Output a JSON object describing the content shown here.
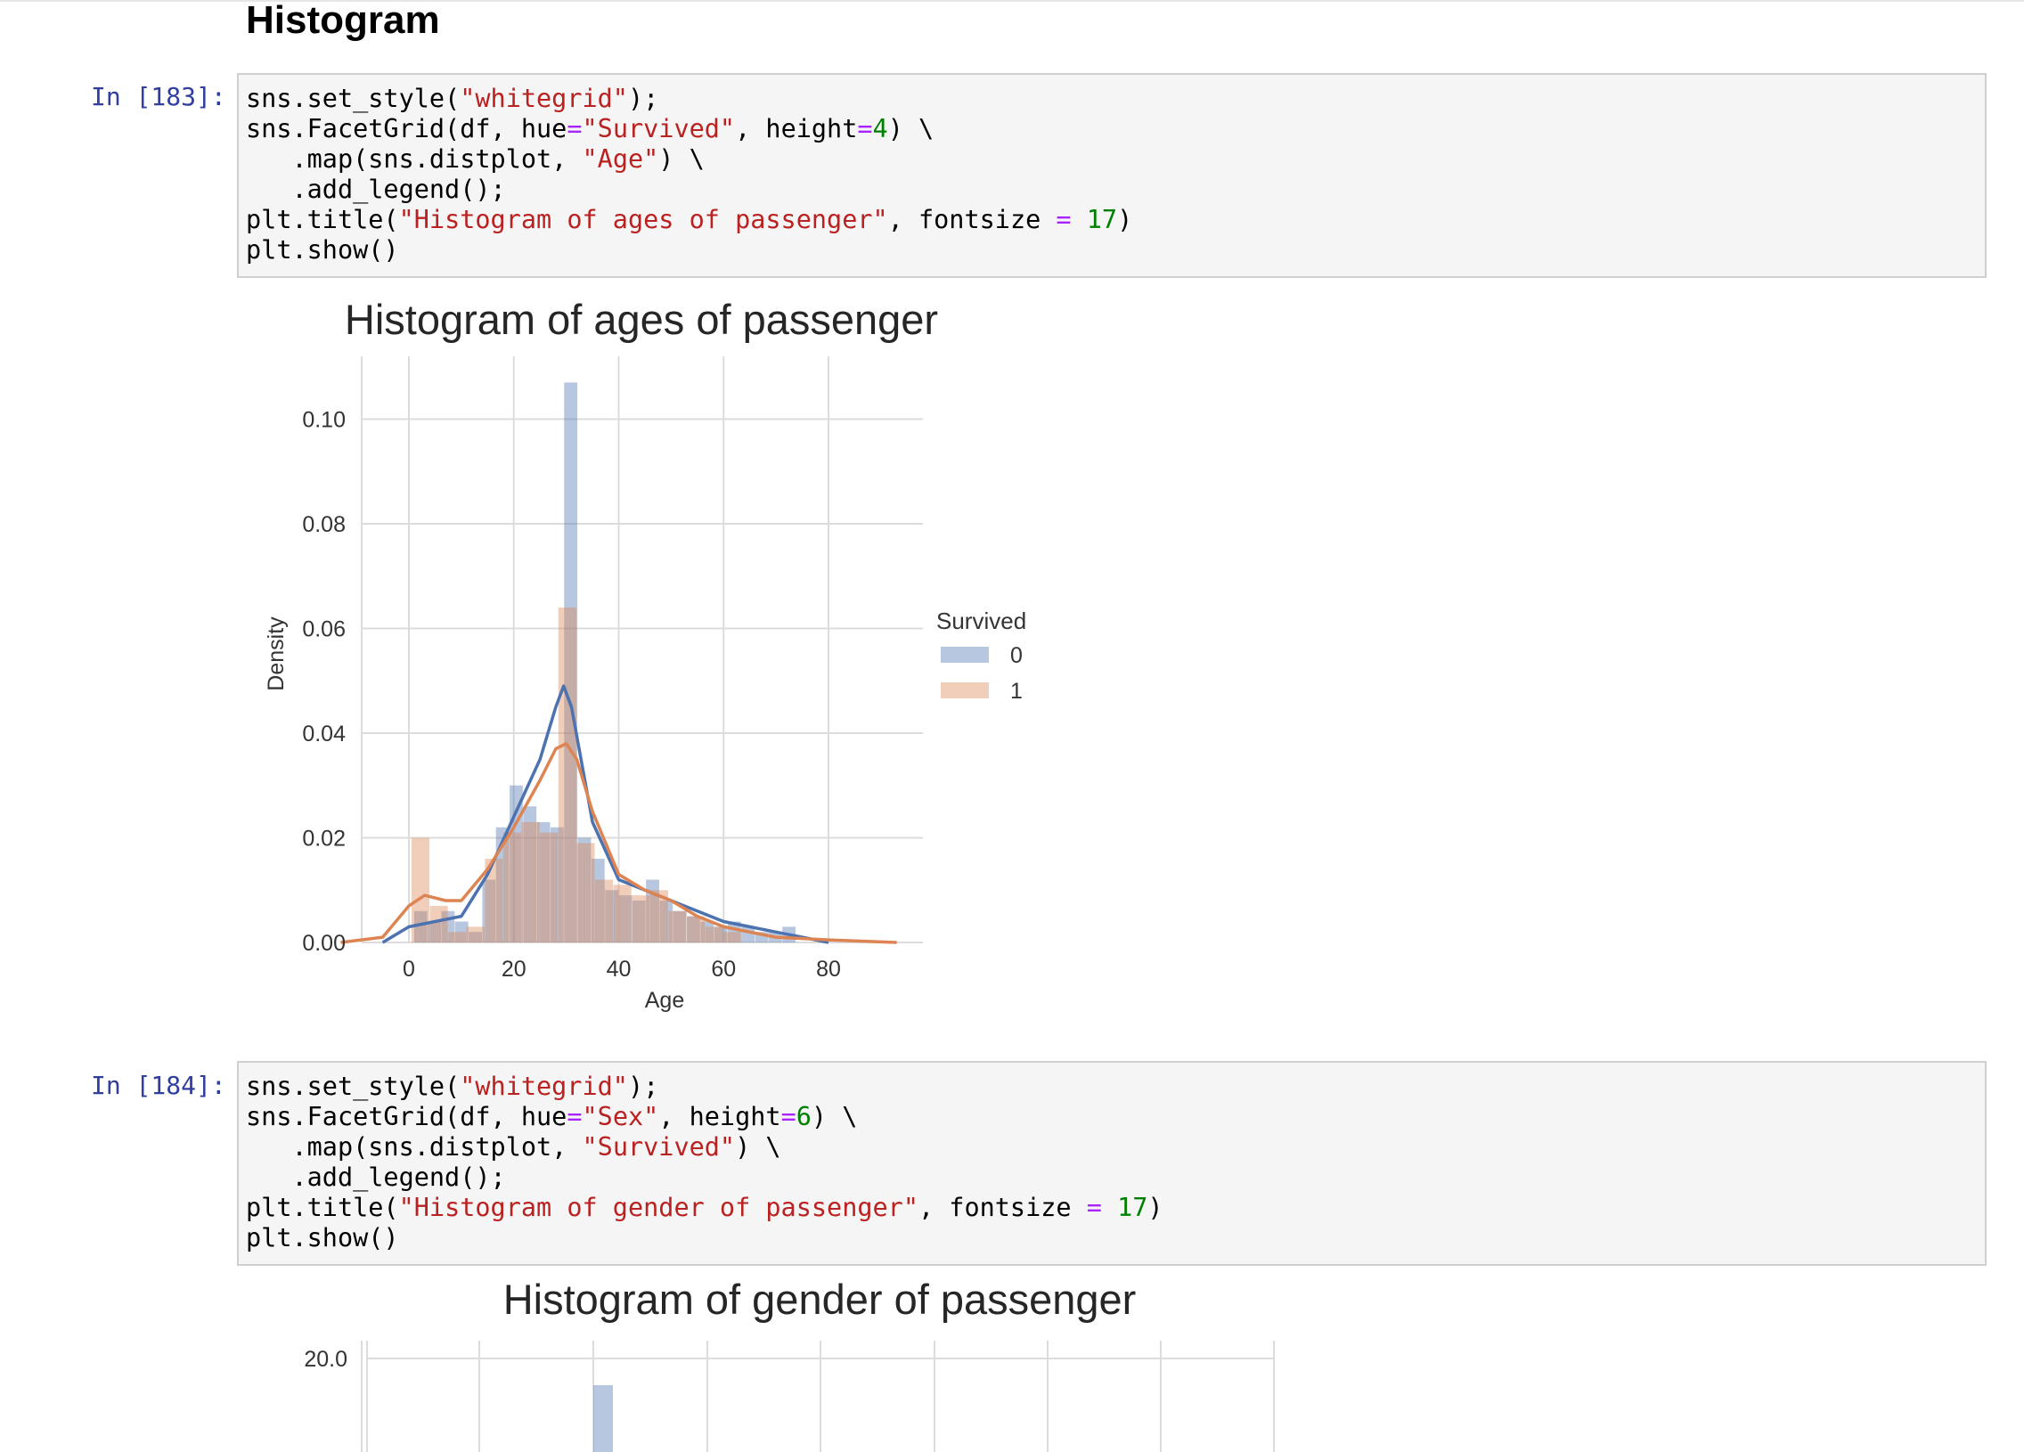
{
  "notebook": {
    "heading": "Histogram",
    "cells": [
      {
        "prompt": "In [183]:",
        "lines": [
          [
            {
              "t": "sns.set_style("
            },
            {
              "t": "\"whitegrid\"",
              "c": "s"
            },
            {
              "t": ");"
            }
          ],
          [
            {
              "t": "sns.FacetGrid(df, hue"
            },
            {
              "t": "=",
              "c": "o"
            },
            {
              "t": "\"Survived\"",
              "c": "s"
            },
            {
              "t": ", height"
            },
            {
              "t": "=",
              "c": "o"
            },
            {
              "t": "4",
              "c": "n"
            },
            {
              "t": ") \\"
            }
          ],
          [
            {
              "t": "   .map(sns.distplot, "
            },
            {
              "t": "\"Age\"",
              "c": "s"
            },
            {
              "t": ") \\"
            }
          ],
          [
            {
              "t": "   .add_legend();"
            }
          ],
          [
            {
              "t": "plt.title("
            },
            {
              "t": "\"Histogram of ages of passenger\"",
              "c": "s"
            },
            {
              "t": ", fontsize "
            },
            {
              "t": "=",
              "c": "o"
            },
            {
              "t": " "
            },
            {
              "t": "17",
              "c": "n"
            },
            {
              "t": ")"
            }
          ],
          [
            {
              "t": "plt.show()"
            }
          ]
        ]
      },
      {
        "prompt": "In [184]:",
        "lines": [
          [
            {
              "t": "sns.set_style("
            },
            {
              "t": "\"whitegrid\"",
              "c": "s"
            },
            {
              "t": ");"
            }
          ],
          [
            {
              "t": "sns.FacetGrid(df, hue"
            },
            {
              "t": "=",
              "c": "o"
            },
            {
              "t": "\"Sex\"",
              "c": "s"
            },
            {
              "t": ", height"
            },
            {
              "t": "=",
              "c": "o"
            },
            {
              "t": "6",
              "c": "n"
            },
            {
              "t": ") \\"
            }
          ],
          [
            {
              "t": "   .map(sns.distplot, "
            },
            {
              "t": "\"Survived\"",
              "c": "s"
            },
            {
              "t": ") \\"
            }
          ],
          [
            {
              "t": "   .add_legend();"
            }
          ],
          [
            {
              "t": "plt.title("
            },
            {
              "t": "\"Histogram of gender of passenger\"",
              "c": "s"
            },
            {
              "t": ", fontsize "
            },
            {
              "t": "=",
              "c": "o"
            },
            {
              "t": " "
            },
            {
              "t": "17",
              "c": "n"
            },
            {
              "t": ")"
            }
          ],
          [
            {
              "t": "plt.show()"
            }
          ]
        ]
      }
    ]
  },
  "chart_data": [
    {
      "type": "bar",
      "title": "Histogram of ages of passenger",
      "xlabel": "Age",
      "ylabel": "Density",
      "xlim": [
        -9,
        98
      ],
      "ylim": [
        0,
        0.112
      ],
      "xticks": [
        0,
        20,
        40,
        60,
        80
      ],
      "yticks": [
        0.0,
        0.02,
        0.04,
        0.06,
        0.08,
        0.1
      ],
      "ytick_labels": [
        "0.00",
        "0.02",
        "0.04",
        "0.06",
        "0.08",
        "0.10"
      ],
      "grid": true,
      "legend": {
        "title": "Survived",
        "placement": "right",
        "entries": [
          "0",
          "1"
        ]
      },
      "colors": {
        "0": "#4c72b0",
        "1": "#dd8452"
      },
      "series": [
        {
          "name": "0",
          "bins": [
            [
              1,
              3.6,
              0.006
            ],
            [
              3.6,
              6.2,
              0.004
            ],
            [
              6.2,
              8.8,
              0.006
            ],
            [
              8.8,
              11.4,
              0.004
            ],
            [
              11.4,
              14,
              0.002
            ],
            [
              14,
              16.6,
              0.012
            ],
            [
              16.6,
              19.2,
              0.022
            ],
            [
              19.2,
              21.8,
              0.03
            ],
            [
              21.8,
              24.4,
              0.026
            ],
            [
              24.4,
              27,
              0.023
            ],
            [
              27,
              29.6,
              0.022
            ],
            [
              29.6,
              32.2,
              0.107
            ],
            [
              32.2,
              34.8,
              0.02
            ],
            [
              34.8,
              37.4,
              0.016
            ],
            [
              37.4,
              40,
              0.01
            ],
            [
              40,
              42.6,
              0.009
            ],
            [
              42.6,
              45.2,
              0.008
            ],
            [
              45.2,
              47.8,
              0.012
            ],
            [
              47.8,
              50.4,
              0.008
            ],
            [
              50.4,
              53,
              0.006
            ],
            [
              53,
              55.6,
              0.005
            ],
            [
              55.6,
              58.2,
              0.004
            ],
            [
              58.2,
              60.8,
              0.003
            ],
            [
              60.8,
              63.4,
              0.004
            ],
            [
              63.4,
              66,
              0.003
            ],
            [
              66,
              68.6,
              0.002
            ],
            [
              68.6,
              71.2,
              0.002
            ],
            [
              71.2,
              73.8,
              0.003
            ]
          ],
          "kde": [
            [
              -5,
              0
            ],
            [
              0,
              0.003
            ],
            [
              5,
              0.004
            ],
            [
              10,
              0.005
            ],
            [
              15,
              0.013
            ],
            [
              20,
              0.024
            ],
            [
              25,
              0.035
            ],
            [
              28,
              0.045
            ],
            [
              29.5,
              0.049
            ],
            [
              31,
              0.045
            ],
            [
              33,
              0.034
            ],
            [
              35,
              0.023
            ],
            [
              40,
              0.012
            ],
            [
              45,
              0.01
            ],
            [
              50,
              0.008
            ],
            [
              55,
              0.006
            ],
            [
              60,
              0.004
            ],
            [
              65,
              0.003
            ],
            [
              70,
              0.002
            ],
            [
              75,
              0.001
            ],
            [
              80,
              0
            ]
          ]
        },
        {
          "name": "1",
          "bins": [
            [
              0.5,
              4,
              0.02
            ],
            [
              4,
              7.5,
              0.007
            ],
            [
              7.5,
              11,
              0.002
            ],
            [
              11,
              14.5,
              0.003
            ],
            [
              14.5,
              18,
              0.016
            ],
            [
              18,
              21.5,
              0.021
            ],
            [
              21.5,
              25,
              0.023
            ],
            [
              25,
              28.5,
              0.021
            ],
            [
              28.5,
              32,
              0.064
            ],
            [
              32,
              35.5,
              0.019
            ],
            [
              35.5,
              39,
              0.012
            ],
            [
              39,
              42.5,
              0.011
            ],
            [
              42.5,
              46,
              0.009
            ],
            [
              46,
              49.5,
              0.01
            ],
            [
              49.5,
              53,
              0.006
            ],
            [
              53,
              56.5,
              0.005
            ],
            [
              56.5,
              60,
              0.003
            ],
            [
              60,
              63.5,
              0.002
            ]
          ],
          "kde": [
            [
              -13,
              0
            ],
            [
              -5,
              0.001
            ],
            [
              0,
              0.007
            ],
            [
              3,
              0.009
            ],
            [
              7,
              0.008
            ],
            [
              10,
              0.008
            ],
            [
              15,
              0.014
            ],
            [
              20,
              0.022
            ],
            [
              25,
              0.031
            ],
            [
              28,
              0.037
            ],
            [
              30,
              0.038
            ],
            [
              32,
              0.035
            ],
            [
              35,
              0.025
            ],
            [
              40,
              0.013
            ],
            [
              45,
              0.01
            ],
            [
              50,
              0.008
            ],
            [
              55,
              0.005
            ],
            [
              60,
              0.003
            ],
            [
              65,
              0.002
            ],
            [
              70,
              0.001
            ],
            [
              80,
              0.0005
            ],
            [
              93,
              0
            ]
          ]
        }
      ]
    },
    {
      "type": "bar",
      "title": "Histogram of gender of passenger",
      "ylim": [
        0,
        20.0
      ],
      "yticks": [
        20.0
      ],
      "ytick_labels": [
        "20.0"
      ],
      "grid": true,
      "colors": {
        "bar": "#4c72b0"
      }
    }
  ]
}
